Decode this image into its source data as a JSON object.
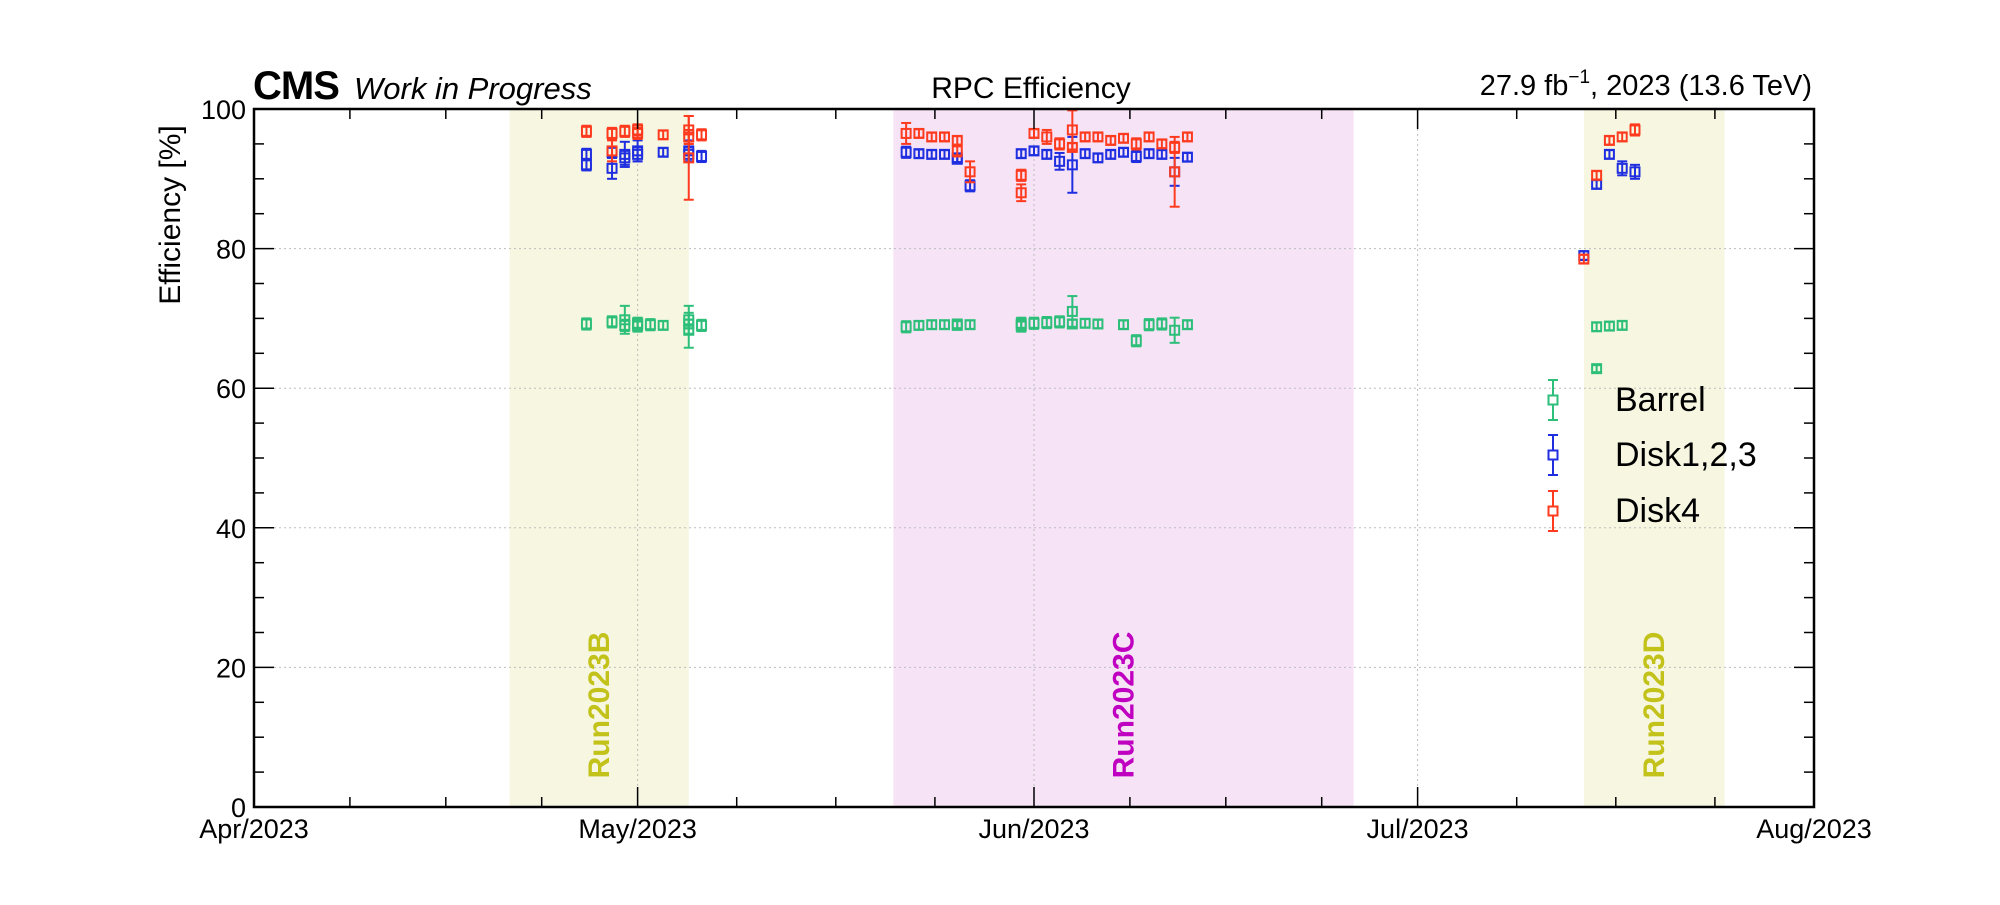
{
  "header": {
    "experiment": "CMS",
    "status": "Work in Progress",
    "center_title": "RPC Efficiency",
    "lumi_value": "27.9 fb",
    "lumi_exp": "−1",
    "lumi_rest": ", 2023 (13.6 TeV)"
  },
  "colors": {
    "Barrel": "#2dbf7a",
    "Disk1,2,3": "#1f2fe0",
    "Disk4": "#ff3b1f",
    "band_B": "#f6f6e1",
    "band_C": "#f6e4f6",
    "band_D": "#f6f6e1",
    "label_BD": "#c2c21a",
    "label_C": "#c000c0"
  },
  "chart_data": {
    "type": "scatter",
    "title": "RPC Efficiency",
    "xlabel": "",
    "ylabel": "Efficiency [%]",
    "x_axis": "date",
    "xlim": [
      "2023-04-01",
      "2023-08-01"
    ],
    "ylim": [
      0,
      100
    ],
    "x_ticks": [
      {
        "date": "2023-04-01",
        "label": "Apr/2023"
      },
      {
        "date": "2023-05-01",
        "label": "May/2023"
      },
      {
        "date": "2023-06-01",
        "label": "Jun/2023"
      },
      {
        "date": "2023-07-01",
        "label": "Jul/2023"
      },
      {
        "date": "2023-08-01",
        "label": "Aug/2023"
      }
    ],
    "y_ticks": [
      0,
      20,
      40,
      60,
      80,
      100
    ],
    "grid": true,
    "legend_position": "right",
    "bands": [
      {
        "label": "Run2023B",
        "start": "2023-04-21",
        "end": "2023-05-05"
      },
      {
        "label": "Run2023C",
        "start": "2023-05-21",
        "end": "2023-06-26"
      },
      {
        "label": "Run2023D",
        "start": "2023-07-14",
        "end": "2023-07-25"
      }
    ],
    "series": [
      {
        "name": "Barrel",
        "points": [
          {
            "x": "2023-04-27",
            "y": 69.2,
            "err": 0.8
          },
          {
            "x": "2023-04-29",
            "y": 69.5,
            "err": 0.8
          },
          {
            "x": "2023-04-30",
            "y": 69.8,
            "err": 2.0
          },
          {
            "x": "2023-04-30",
            "y": 69.0,
            "err": 0.8
          },
          {
            "x": "2023-05-01",
            "y": 69.3,
            "err": 0.8
          },
          {
            "x": "2023-05-01",
            "y": 68.9,
            "err": 0.8
          },
          {
            "x": "2023-05-01",
            "y": 69.2,
            "err": 0.8
          },
          {
            "x": "2023-05-02",
            "y": 69.1,
            "err": 0.8
          },
          {
            "x": "2023-05-03",
            "y": 69.0,
            "err": 0.6
          },
          {
            "x": "2023-05-05",
            "y": 69.2,
            "err": 0.6
          },
          {
            "x": "2023-05-05",
            "y": 68.3,
            "err": 2.5
          },
          {
            "x": "2023-05-05",
            "y": 69.8,
            "err": 2.0
          },
          {
            "x": "2023-05-06",
            "y": 69.0,
            "err": 0.8
          },
          {
            "x": "2023-05-22",
            "y": 68.8,
            "err": 0.8
          },
          {
            "x": "2023-05-23",
            "y": 69.0,
            "err": 0.6
          },
          {
            "x": "2023-05-24",
            "y": 69.1,
            "err": 0.6
          },
          {
            "x": "2023-05-25",
            "y": 69.1,
            "err": 0.6
          },
          {
            "x": "2023-05-26",
            "y": 69.2,
            "err": 0.6
          },
          {
            "x": "2023-05-26",
            "y": 69.0,
            "err": 0.6
          },
          {
            "x": "2023-05-27",
            "y": 69.1,
            "err": 0.6
          },
          {
            "x": "2023-05-31",
            "y": 69.3,
            "err": 0.8
          },
          {
            "x": "2023-05-31",
            "y": 68.9,
            "err": 0.8
          },
          {
            "x": "2023-06-01",
            "y": 69.3,
            "err": 0.8
          },
          {
            "x": "2023-06-02",
            "y": 69.4,
            "err": 0.8
          },
          {
            "x": "2023-06-03",
            "y": 69.5,
            "err": 0.8
          },
          {
            "x": "2023-06-04",
            "y": 71.0,
            "err": 2.2
          },
          {
            "x": "2023-06-04",
            "y": 69.2,
            "err": 0.6
          },
          {
            "x": "2023-06-05",
            "y": 69.3,
            "err": 0.6
          },
          {
            "x": "2023-06-06",
            "y": 69.2,
            "err": 0.6
          },
          {
            "x": "2023-06-08",
            "y": 69.1,
            "err": 0.6
          },
          {
            "x": "2023-06-09",
            "y": 66.8,
            "err": 0.8
          },
          {
            "x": "2023-06-10",
            "y": 69.1,
            "err": 0.8
          },
          {
            "x": "2023-06-11",
            "y": 69.2,
            "err": 0.8
          },
          {
            "x": "2023-06-12",
            "y": 68.3,
            "err": 1.8
          },
          {
            "x": "2023-06-13",
            "y": 69.1,
            "err": 0.6
          },
          {
            "x": "2023-07-15",
            "y": 62.8,
            "err": 0.5
          },
          {
            "x": "2023-07-15",
            "y": 68.8,
            "err": 0.6
          },
          {
            "x": "2023-07-16",
            "y": 68.9,
            "err": 0.6
          },
          {
            "x": "2023-07-17",
            "y": 69.0,
            "err": 0.6
          }
        ]
      },
      {
        "name": "Disk1,2,3",
        "points": [
          {
            "x": "2023-04-27",
            "y": 93.5,
            "err": 0.8
          },
          {
            "x": "2023-04-27",
            "y": 92.0,
            "err": 0.8
          },
          {
            "x": "2023-04-29",
            "y": 93.8,
            "err": 0.8
          },
          {
            "x": "2023-04-29",
            "y": 91.5,
            "err": 1.5
          },
          {
            "x": "2023-04-30",
            "y": 93.5,
            "err": 1.8
          },
          {
            "x": "2023-04-30",
            "y": 93.0,
            "err": 1.0
          },
          {
            "x": "2023-05-01",
            "y": 94.0,
            "err": 1.5
          },
          {
            "x": "2023-05-01",
            "y": 93.5,
            "err": 1.0
          },
          {
            "x": "2023-05-03",
            "y": 93.8,
            "err": 0.6
          },
          {
            "x": "2023-05-05",
            "y": 94.0,
            "err": 1.5
          },
          {
            "x": "2023-05-05",
            "y": 93.5,
            "err": 1.0
          },
          {
            "x": "2023-05-06",
            "y": 93.2,
            "err": 0.8
          },
          {
            "x": "2023-05-22",
            "y": 93.8,
            "err": 0.8
          },
          {
            "x": "2023-05-23",
            "y": 93.6,
            "err": 0.6
          },
          {
            "x": "2023-05-24",
            "y": 93.5,
            "err": 0.6
          },
          {
            "x": "2023-05-25",
            "y": 93.5,
            "err": 0.6
          },
          {
            "x": "2023-05-26",
            "y": 93.0,
            "err": 0.6
          },
          {
            "x": "2023-05-26",
            "y": 92.8,
            "err": 0.6
          },
          {
            "x": "2023-05-27",
            "y": 89.0,
            "err": 0.8
          },
          {
            "x": "2023-05-31",
            "y": 93.6,
            "err": 0.6
          },
          {
            "x": "2023-06-01",
            "y": 94.0,
            "err": 0.6
          },
          {
            "x": "2023-06-02",
            "y": 93.5,
            "err": 0.6
          },
          {
            "x": "2023-06-03",
            "y": 92.5,
            "err": 1.2
          },
          {
            "x": "2023-06-04",
            "y": 92.0,
            "err": 4.0
          },
          {
            "x": "2023-06-05",
            "y": 93.6,
            "err": 0.6
          },
          {
            "x": "2023-06-06",
            "y": 93.0,
            "err": 0.6
          },
          {
            "x": "2023-06-07",
            "y": 93.5,
            "err": 0.6
          },
          {
            "x": "2023-06-08",
            "y": 93.8,
            "err": 0.6
          },
          {
            "x": "2023-06-09",
            "y": 93.2,
            "err": 0.8
          },
          {
            "x": "2023-06-10",
            "y": 93.6,
            "err": 0.6
          },
          {
            "x": "2023-06-11",
            "y": 93.5,
            "err": 0.6
          },
          {
            "x": "2023-06-12",
            "y": 91.0,
            "err": 2.0
          },
          {
            "x": "2023-06-13",
            "y": 93.1,
            "err": 0.6
          },
          {
            "x": "2023-07-14",
            "y": 79.0,
            "err": 0.6
          },
          {
            "x": "2023-07-15",
            "y": 89.2,
            "err": 0.6
          },
          {
            "x": "2023-07-16",
            "y": 93.5,
            "err": 0.6
          },
          {
            "x": "2023-07-17",
            "y": 91.5,
            "err": 1.0
          },
          {
            "x": "2023-07-18",
            "y": 91.0,
            "err": 1.0
          }
        ]
      },
      {
        "name": "Disk4",
        "points": [
          {
            "x": "2023-04-27",
            "y": 96.8,
            "err": 0.8
          },
          {
            "x": "2023-04-29",
            "y": 96.5,
            "err": 0.8
          },
          {
            "x": "2023-04-29",
            "y": 94.0,
            "err": 1.5
          },
          {
            "x": "2023-04-30",
            "y": 96.8,
            "err": 0.8
          },
          {
            "x": "2023-05-01",
            "y": 97.0,
            "err": 0.8
          },
          {
            "x": "2023-05-01",
            "y": 96.5,
            "err": 0.8
          },
          {
            "x": "2023-05-03",
            "y": 96.3,
            "err": 0.6
          },
          {
            "x": "2023-05-05",
            "y": 97.0,
            "err": 2.0
          },
          {
            "x": "2023-05-05",
            "y": 93.0,
            "err": 6.0
          },
          {
            "x": "2023-05-05",
            "y": 96.0,
            "err": 1.0
          },
          {
            "x": "2023-05-06",
            "y": 96.3,
            "err": 0.8
          },
          {
            "x": "2023-05-22",
            "y": 96.5,
            "err": 1.5
          },
          {
            "x": "2023-05-23",
            "y": 96.5,
            "err": 0.6
          },
          {
            "x": "2023-05-24",
            "y": 96.0,
            "err": 0.6
          },
          {
            "x": "2023-05-25",
            "y": 96.0,
            "err": 0.6
          },
          {
            "x": "2023-05-26",
            "y": 95.5,
            "err": 0.6
          },
          {
            "x": "2023-05-26",
            "y": 94.0,
            "err": 0.8
          },
          {
            "x": "2023-05-27",
            "y": 91.0,
            "err": 1.5
          },
          {
            "x": "2023-05-31",
            "y": 90.5,
            "err": 0.8
          },
          {
            "x": "2023-05-31",
            "y": 88.0,
            "err": 1.2
          },
          {
            "x": "2023-06-01",
            "y": 96.5,
            "err": 0.6
          },
          {
            "x": "2023-06-02",
            "y": 96.0,
            "err": 1.0
          },
          {
            "x": "2023-06-03",
            "y": 95.0,
            "err": 0.8
          },
          {
            "x": "2023-06-04",
            "y": 97.0,
            "err": 2.8
          },
          {
            "x": "2023-06-04",
            "y": 94.5,
            "err": 0.6
          },
          {
            "x": "2023-06-05",
            "y": 96.0,
            "err": 0.6
          },
          {
            "x": "2023-06-06",
            "y": 96.0,
            "err": 0.6
          },
          {
            "x": "2023-06-07",
            "y": 95.5,
            "err": 0.6
          },
          {
            "x": "2023-06-08",
            "y": 95.8,
            "err": 0.6
          },
          {
            "x": "2023-06-09",
            "y": 95.0,
            "err": 0.8
          },
          {
            "x": "2023-06-10",
            "y": 96.0,
            "err": 0.6
          },
          {
            "x": "2023-06-11",
            "y": 95.0,
            "err": 0.6
          },
          {
            "x": "2023-06-12",
            "y": 91.0,
            "err": 5.0
          },
          {
            "x": "2023-06-12",
            "y": 94.5,
            "err": 0.8
          },
          {
            "x": "2023-06-13",
            "y": 96.0,
            "err": 0.6
          },
          {
            "x": "2023-07-14",
            "y": 78.5,
            "err": 0.6
          },
          {
            "x": "2023-07-15",
            "y": 90.5,
            "err": 0.6
          },
          {
            "x": "2023-07-16",
            "y": 95.5,
            "err": 0.6
          },
          {
            "x": "2023-07-17",
            "y": 96.0,
            "err": 0.6
          },
          {
            "x": "2023-07-18",
            "y": 97.0,
            "err": 0.8
          }
        ]
      }
    ]
  }
}
